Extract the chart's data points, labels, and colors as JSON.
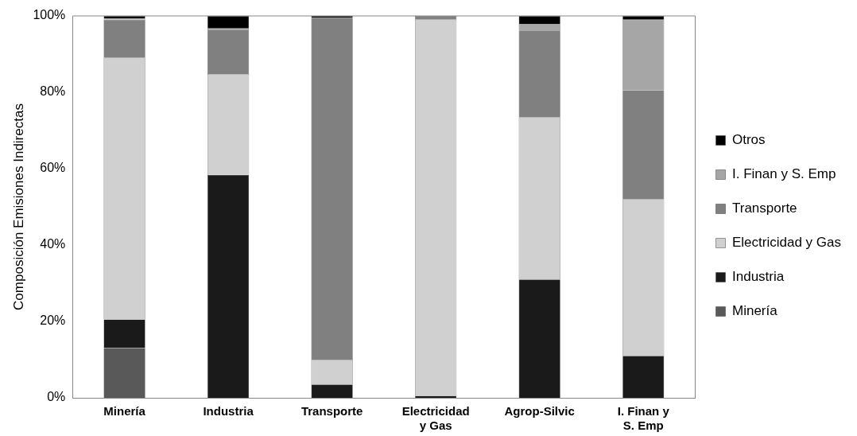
{
  "chart_data": {
    "type": "bar",
    "stacked": true,
    "ylabel": "Composición Emisiones Indirectas",
    "categories": [
      "Minería",
      "Industria",
      "Transporte",
      "Electricidad y Gas",
      "Agrop-Silvic",
      "I. Finan y S. Emp"
    ],
    "series": [
      {
        "name": "Minería",
        "color": "#595959",
        "values": [
          13,
          0,
          0,
          0,
          0,
          0
        ]
      },
      {
        "name": "Industria",
        "color": "#1a1a1a",
        "values": [
          7.5,
          58.4,
          3.5,
          0.5,
          31,
          11
        ]
      },
      {
        "name": "Electricidad y Gas",
        "color": "#d0d0d0",
        "values": [
          68.5,
          26.4,
          6.5,
          98.5,
          42.5,
          41
        ]
      },
      {
        "name": "Transporte",
        "color": "#808080",
        "values": [
          10,
          11.6,
          89.5,
          1,
          22.7,
          28.5
        ]
      },
      {
        "name": "I. Finan y S. Emp",
        "color": "#a6a6a6",
        "values": [
          0.3,
          0.3,
          0,
          0,
          1.6,
          18.5
        ]
      },
      {
        "name": "Otros",
        "color": "#000000",
        "values": [
          0.7,
          3.3,
          0.5,
          0,
          2.2,
          1
        ]
      }
    ],
    "ylim": [
      0,
      100
    ],
    "yticks": [
      {
        "value": 0,
        "label": "0%"
      },
      {
        "value": 20,
        "label": "20%"
      },
      {
        "value": 40,
        "label": "40%"
      },
      {
        "value": 60,
        "label": "60%"
      },
      {
        "value": 80,
        "label": "80%"
      },
      {
        "value": 100,
        "label": "100%"
      }
    ],
    "grid": false,
    "legend": "right"
  }
}
